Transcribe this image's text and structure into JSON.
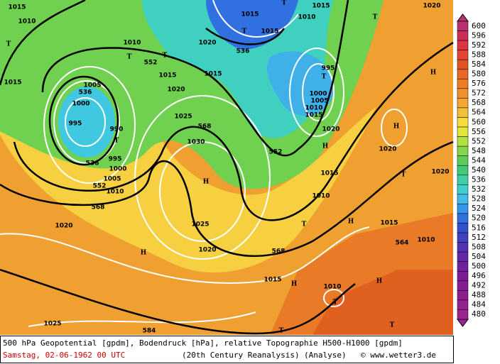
{
  "map": {
    "labels": [
      "1015",
      "1010",
      "T",
      "1015",
      "1010",
      "552",
      "T",
      "T",
      "1015",
      "1015",
      "536",
      "1005",
      "1000",
      "995",
      "990",
      "T",
      "995",
      "536",
      "1000",
      "1005",
      "552",
      "1010",
      "568",
      "1020",
      "1025",
      "1030",
      "568",
      "H",
      "1025",
      "1020",
      "H",
      "1015",
      "T",
      "1015",
      "1020",
      "536",
      "1010",
      "1015",
      "T",
      "T",
      "1020",
      "995",
      "T",
      "1000",
      "1005",
      "1010",
      "1015",
      "1020",
      "552",
      "H",
      "H",
      "H",
      "1020",
      "T",
      "1020",
      "1015",
      "1010",
      "T",
      "H",
      "1015",
      "1010",
      "564",
      "568",
      "H",
      "1015",
      "H",
      "1010",
      "T",
      "T",
      "T",
      "584",
      "1025",
      "1020"
    ]
  },
  "colorbar": {
    "ticks": [
      600,
      596,
      592,
      588,
      584,
      580,
      576,
      572,
      568,
      564,
      560,
      556,
      552,
      548,
      544,
      540,
      536,
      532,
      528,
      524,
      520,
      516,
      512,
      508,
      504,
      500,
      496,
      492,
      488,
      484,
      480
    ],
    "colors": [
      "#b8306e",
      "#cc2c58",
      "#dc3444",
      "#e44434",
      "#e05424",
      "#e86824",
      "#ee7c24",
      "#f09028",
      "#f4a830",
      "#f2c034",
      "#f6dc3c",
      "#e2e63a",
      "#b2e040",
      "#84d64a",
      "#5ccc58",
      "#44c87a",
      "#40cea6",
      "#40d0cc",
      "#40bce8",
      "#3496e8",
      "#3070e0",
      "#3052d0",
      "#4040c0",
      "#5032b2",
      "#6228a8",
      "#70209e",
      "#7c1c96",
      "#861c92",
      "#8e1e90",
      "#962290",
      "#9c2490"
    ]
  },
  "footer": {
    "line1": "500 hPa Geopotential [gpdm], Bodendruck [hPa], relative Topographie H500-H1000 [gpdm]",
    "date": "Samstag, 02-06-1962  00 UTC",
    "source": "(20th Century Reanalysis)",
    "kind": "(Analyse)",
    "site": "© www.wetter3.de"
  }
}
